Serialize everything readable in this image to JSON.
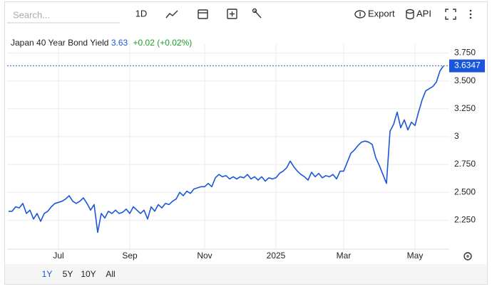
{
  "toolbar": {
    "search_placeholder": "Search...",
    "interval": "1D",
    "export": "Export",
    "api": "API"
  },
  "ranges": [
    "1Y",
    "5Y",
    "10Y",
    "All"
  ],
  "chart_data": {
    "type": "line",
    "title": "Japan 40 Year Bond Yield",
    "last": "3.63",
    "change": "+0.02 (+0.02%)",
    "categories": [
      null,
      null,
      null,
      null,
      null,
      null,
      null,
      null,
      null,
      null,
      null,
      null,
      null,
      null,
      "Jul",
      null,
      null,
      null,
      null,
      null,
      null,
      null,
      null,
      null,
      null,
      null,
      null,
      null,
      null,
      null,
      null,
      null,
      null,
      null,
      "Sep",
      null,
      null,
      null,
      null,
      null,
      null,
      null,
      null,
      null,
      null,
      null,
      null,
      null,
      null,
      null,
      null,
      null,
      null,
      null,
      null,
      "Nov",
      null,
      null,
      null,
      null,
      null,
      null,
      null,
      null,
      null,
      null,
      null,
      null,
      null,
      null,
      null,
      null,
      null,
      null,
      null,
      "2025",
      null,
      null,
      null,
      null,
      null,
      null,
      null,
      null,
      null,
      null,
      null,
      null,
      null,
      null,
      null,
      null,
      null,
      null,
      "Mar",
      null,
      null,
      null,
      null,
      null,
      null,
      null,
      null,
      null,
      null,
      null,
      null,
      null,
      null,
      null,
      null,
      null,
      null,
      null,
      "May",
      null,
      null,
      null,
      null,
      null,
      null,
      null,
      null
    ],
    "series": [
      {
        "name": "Japan 40 Year Bond Yield",
        "color": "#1a56db",
        "values": [
          2.33,
          2.33,
          2.37,
          2.36,
          2.4,
          2.31,
          2.34,
          2.26,
          2.31,
          2.24,
          2.31,
          2.33,
          2.37,
          2.4,
          2.41,
          2.42,
          2.44,
          2.47,
          2.42,
          2.4,
          2.42,
          2.45,
          2.4,
          2.34,
          2.39,
          2.14,
          2.31,
          2.27,
          2.33,
          2.31,
          2.34,
          2.31,
          2.32,
          2.35,
          2.31,
          2.37,
          2.34,
          2.31,
          2.34,
          2.26,
          2.37,
          2.33,
          2.39,
          2.36,
          2.4,
          2.39,
          2.42,
          2.44,
          2.5,
          2.47,
          2.51,
          2.49,
          2.53,
          2.54,
          2.55,
          2.55,
          2.58,
          2.55,
          2.63,
          2.66,
          2.64,
          2.65,
          2.62,
          2.64,
          2.62,
          2.64,
          2.63,
          2.66,
          2.62,
          2.64,
          2.61,
          2.64,
          2.6,
          2.63,
          2.62,
          2.63,
          2.67,
          2.69,
          2.72,
          2.78,
          2.73,
          2.69,
          2.66,
          2.64,
          2.61,
          2.68,
          2.64,
          2.67,
          2.63,
          2.65,
          2.64,
          2.66,
          2.62,
          2.69,
          2.69,
          2.77,
          2.85,
          2.88,
          2.92,
          2.95,
          2.96,
          2.95,
          2.93,
          2.81,
          2.74,
          2.66,
          2.58,
          3.05,
          3.11,
          3.22,
          3.08,
          3.15,
          3.06,
          3.13,
          3.1,
          3.22,
          3.33,
          3.41,
          3.43,
          3.45,
          3.49,
          3.59,
          3.6347
        ]
      }
    ],
    "ylim": [
      1.99,
      3.83
    ],
    "yticks": [
      {
        "value": 2.25,
        "label": "2.250"
      },
      {
        "value": 2.5,
        "label": "2.500"
      },
      {
        "value": 2.75,
        "label": "2.750"
      },
      3,
      {
        "value": 3.25,
        "label": "3.250"
      },
      {
        "value": 3.5,
        "label": "3.500"
      },
      {
        "value": 3.75,
        "label": "3.750"
      }
    ],
    "grid": true
  }
}
